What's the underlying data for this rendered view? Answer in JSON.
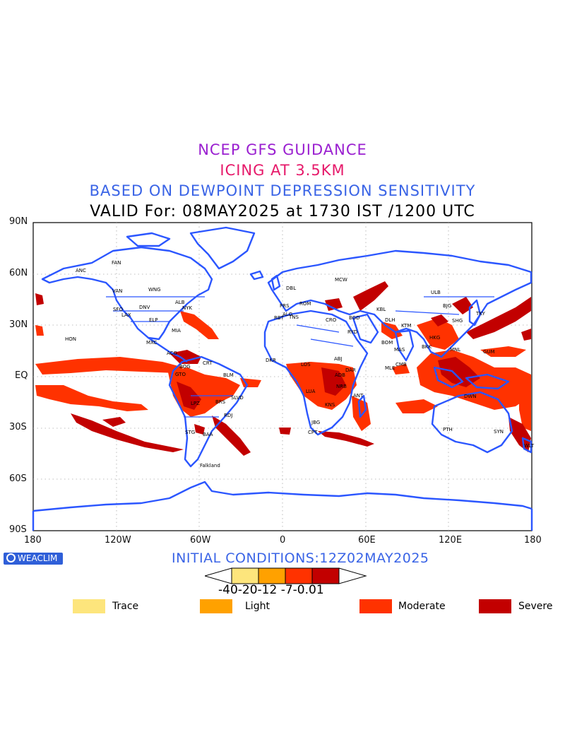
{
  "title": {
    "line1": "NCEP GFS GUIDANCE",
    "line2": "ICING AT 3.5KM",
    "line3": "BASED ON DEWPOINT DEPRESSION SENSITIVITY",
    "line4": "VALID For: 08MAY2025 at 1730 IST /1200 UTC",
    "line1_color": "#9a1fd0",
    "line2_color": "#e6196a",
    "line3_color": "#3a64e6"
  },
  "map": {
    "lat_labels": [
      "90N",
      "60N",
      "30N",
      "EQ",
      "30S",
      "60S",
      "90S"
    ],
    "lon_labels": [
      "180",
      "120W",
      "60W",
      "0",
      "60E",
      "120E",
      "180"
    ],
    "coast_color": "#2b56ff",
    "city_labels": [
      "ANC",
      "FAN",
      "VAN",
      "WNG",
      "SFO",
      "ALB",
      "NYK",
      "LAX",
      "DNV",
      "ELP",
      "MIA",
      "HON",
      "MXC",
      "ACG",
      "BOG",
      "CRT",
      "BLM",
      "GTO",
      "BRS",
      "SLVD",
      "LPZ",
      "RDJ",
      "STG",
      "BAA",
      "Falkland",
      "MCW",
      "DBL",
      "PRS",
      "ROM",
      "ALG",
      "TNS",
      "RBT",
      "CRO",
      "RYD",
      "BGD",
      "KBL",
      "DLH",
      "KTM",
      "BOM",
      "MAS",
      "CMB",
      "MLE",
      "DKR",
      "ABJ",
      "LOS",
      "ADB",
      "NRB",
      "DAR",
      "LUA",
      "KNS",
      "CPT",
      "JBG",
      "ANT",
      "ULB",
      "BJG",
      "SHG",
      "TKY",
      "HKG",
      "MNL",
      "BKK",
      "GUM",
      "DWN",
      "PTH",
      "SYN",
      "WLT"
    ],
    "icing_colors": {
      "trace": "#fde57c",
      "light": "#ffa100",
      "moderate": "#ff3200",
      "severe": "#c20000"
    }
  },
  "footer": {
    "logo_text": "WEACLIM",
    "initial_conditions": "INITIAL CONDITIONS:12Z02MAY2025",
    "colorbar_labels": "-40-20-12 -7-0.01"
  },
  "legend": [
    {
      "label": "Trace",
      "color": "#fde57c"
    },
    {
      "label": "Light",
      "color": "#ffa100"
    },
    {
      "label": "Moderate",
      "color": "#ff3200"
    },
    {
      "label": "Severe",
      "color": "#c20000"
    }
  ]
}
